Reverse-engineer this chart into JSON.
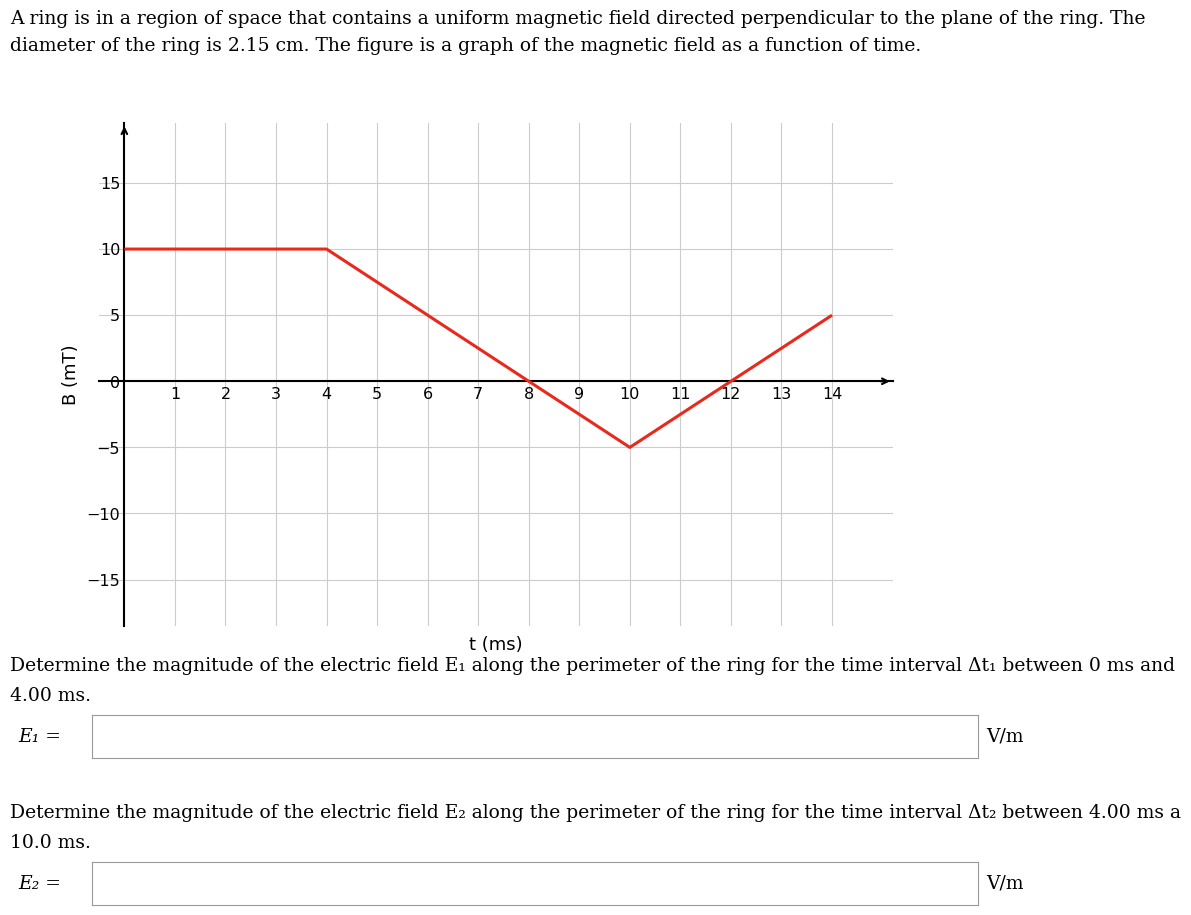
{
  "line_title": "A ring is in a region of space that contains a uniform magnetic field directed perpendicular to the plane of the ring. The",
  "line_title2": "diameter of the ring is 2.15 cm. The figure is a graph of the magnetic field as a function of time.",
  "graph_t": [
    0,
    4,
    8,
    10,
    12,
    14
  ],
  "graph_B": [
    10,
    10,
    0,
    -5,
    0,
    5
  ],
  "line_color": "#e8291c",
  "line_width": 2.2,
  "xlabel": "t (ms)",
  "ylabel": "B (mT)",
  "yticks": [
    -15,
    -10,
    -5,
    0,
    5,
    10,
    15
  ],
  "xticks": [
    1,
    2,
    3,
    4,
    5,
    6,
    7,
    8,
    9,
    10,
    11,
    12,
    13,
    14
  ],
  "xlim": [
    -0.5,
    15.2
  ],
  "ylim": [
    -18.5,
    19.5
  ],
  "grid_color": "#cccccc",
  "background_color": "#ffffff",
  "text_color": "#000000",
  "E1_label": "E₁ =",
  "E2_label": "E₂ =",
  "Vm_label": "V/m",
  "question1": "Determine the magnitude of the electric field E₁ along the perimeter of the ring for the time interval Δt₁ between 0 ms and",
  "question1b": "4.00 ms.",
  "question2": "Determine the magnitude of the electric field E₂ along the perimeter of the ring for the time interval Δt₂ between 4.00 ms a",
  "question2b": "10.0 ms.",
  "fontsize_text": 13.5,
  "fontsize_label": 13,
  "fontsize_tick": 11.5
}
